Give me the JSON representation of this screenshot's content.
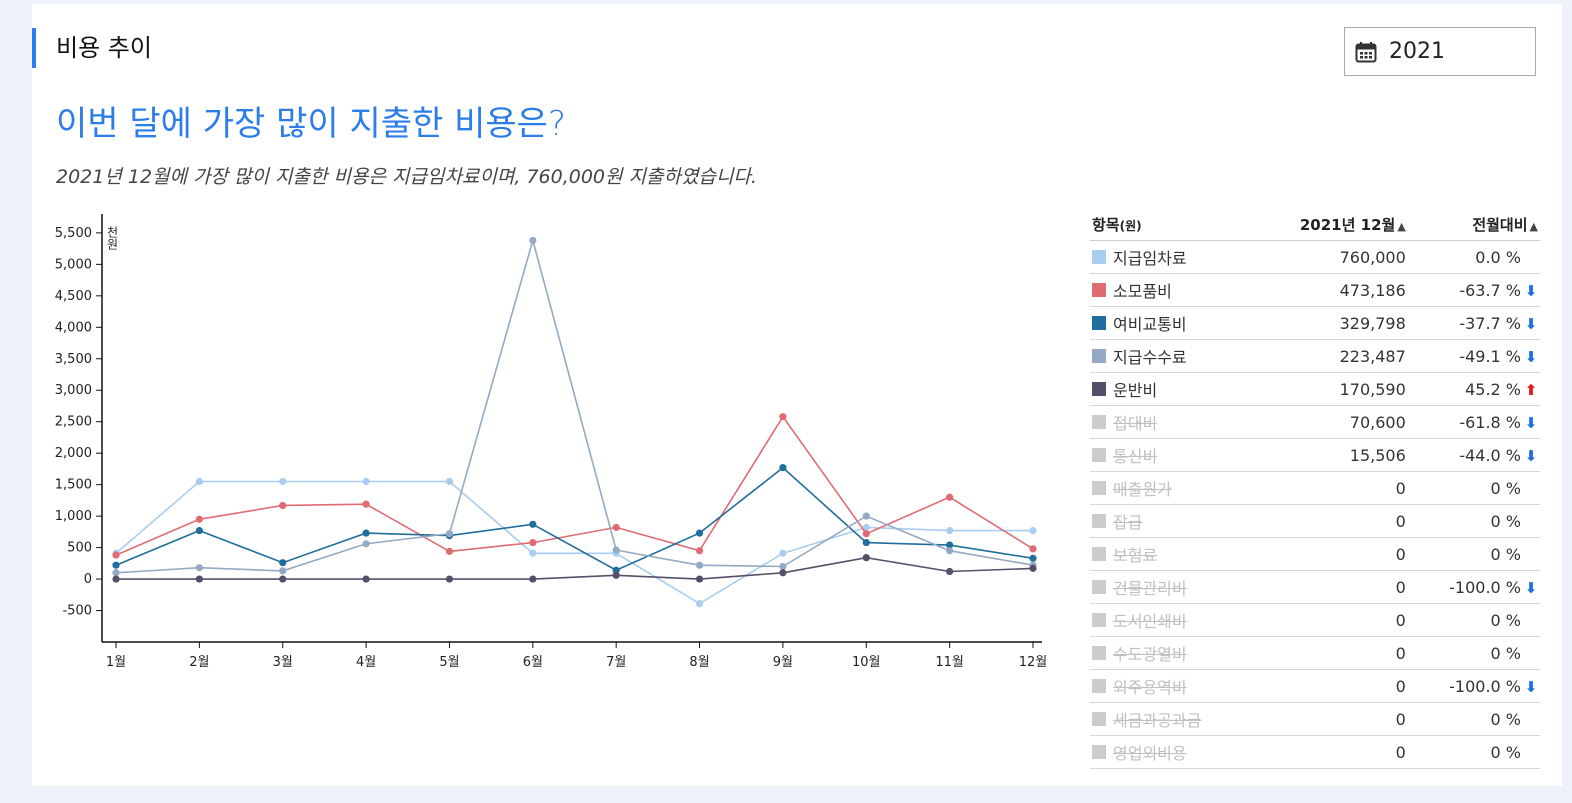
{
  "header": {
    "title": "비용 추이"
  },
  "year_picker": {
    "value": "2021",
    "icon": "calendar-icon"
  },
  "headline": "이번 달에 가장 많이 지출한 비용은?",
  "summary": "2021년 12월에 가장 많이 지출한 비용은 지급임차료이며, 760,000원 지출하였습니다.",
  "table": {
    "headers": {
      "item": "항목",
      "unit": "(원)",
      "month": "2021년 12월",
      "compare": "전월대비",
      "sort_icon": "sort-icon"
    },
    "rows": [
      {
        "name": "지급임차료",
        "amount": "760,000",
        "change": "0.0 %",
        "trend": "none",
        "color": "#a8cdf0",
        "active": true
      },
      {
        "name": "소모품비",
        "amount": "473,186",
        "change": "-63.7 %",
        "trend": "down",
        "color": "#e06b72",
        "active": true
      },
      {
        "name": "여비교통비",
        "amount": "329,798",
        "change": "-37.7 %",
        "trend": "down",
        "color": "#1f6e9c",
        "active": true
      },
      {
        "name": "지급수수료",
        "amount": "223,487",
        "change": "-49.1 %",
        "trend": "down",
        "color": "#94a9c4",
        "active": true
      },
      {
        "name": "운반비",
        "amount": "170,590",
        "change": "45.2 %",
        "trend": "up",
        "color": "#555068",
        "active": true
      },
      {
        "name": "접대비",
        "amount": "70,600",
        "change": "-61.8 %",
        "trend": "down",
        "color": "#cccccc",
        "active": false
      },
      {
        "name": "통신비",
        "amount": "15,506",
        "change": "-44.0 %",
        "trend": "down",
        "color": "#cccccc",
        "active": false
      },
      {
        "name": "매출원가",
        "amount": "0",
        "change": "0 %",
        "trend": "none",
        "color": "#cccccc",
        "active": false
      },
      {
        "name": "잡급",
        "amount": "0",
        "change": "0 %",
        "trend": "none",
        "color": "#cccccc",
        "active": false
      },
      {
        "name": "보험료",
        "amount": "0",
        "change": "0 %",
        "trend": "none",
        "color": "#cccccc",
        "active": false
      },
      {
        "name": "건물관리비",
        "amount": "0",
        "change": "-100.0 %",
        "trend": "down",
        "color": "#cccccc",
        "active": false
      },
      {
        "name": "도서인쇄비",
        "amount": "0",
        "change": "0 %",
        "trend": "none",
        "color": "#cccccc",
        "active": false
      },
      {
        "name": "수도광열비",
        "amount": "0",
        "change": "0 %",
        "trend": "none",
        "color": "#cccccc",
        "active": false
      },
      {
        "name": "외주용역비",
        "amount": "0",
        "change": "-100.0 %",
        "trend": "down",
        "color": "#cccccc",
        "active": false
      },
      {
        "name": "세금과공과금",
        "amount": "0",
        "change": "0 %",
        "trend": "none",
        "color": "#cccccc",
        "active": false
      },
      {
        "name": "영업외비용",
        "amount": "0",
        "change": "0 %",
        "trend": "none",
        "color": "#cccccc",
        "active": false
      }
    ]
  },
  "chart_data": {
    "type": "line",
    "ylabel": "천원",
    "ylim": [
      -1000,
      5800
    ],
    "yticks": [
      -500,
      0,
      500,
      1000,
      1500,
      2000,
      2500,
      3000,
      3500,
      4000,
      4500,
      5000,
      5500
    ],
    "yticklabels": [
      "-500",
      "0",
      "500",
      "1,000",
      "1,500",
      "2,000",
      "2,500",
      "3,000",
      "3,500",
      "4,000",
      "4,500",
      "5,000",
      "5,500"
    ],
    "categories": [
      "1월",
      "2월",
      "3월",
      "4월",
      "5월",
      "6월",
      "7월",
      "8월",
      "9월",
      "10월",
      "11월",
      "12월"
    ],
    "grid": false,
    "series": [
      {
        "name": "지급임차료",
        "color": "#a8cdf0",
        "values": [
          410,
          1550,
          1550,
          1550,
          1550,
          410,
          410,
          -390,
          410,
          820,
          770,
          770
        ]
      },
      {
        "name": "소모품비",
        "color": "#e06b72",
        "values": [
          380,
          950,
          1170,
          1190,
          440,
          580,
          820,
          450,
          2580,
          720,
          1300,
          480
        ]
      },
      {
        "name": "여비교통비",
        "color": "#1f6e9c",
        "values": [
          220,
          770,
          260,
          730,
          690,
          870,
          140,
          730,
          1770,
          580,
          540,
          330
        ]
      },
      {
        "name": "지급수수료",
        "color": "#94a9c4",
        "values": [
          100,
          180,
          130,
          560,
          720,
          5380,
          460,
          220,
          200,
          1000,
          450,
          220
        ]
      },
      {
        "name": "운반비",
        "color": "#555068",
        "values": [
          0,
          0,
          0,
          0,
          0,
          0,
          60,
          0,
          100,
          340,
          120,
          170
        ]
      }
    ]
  }
}
